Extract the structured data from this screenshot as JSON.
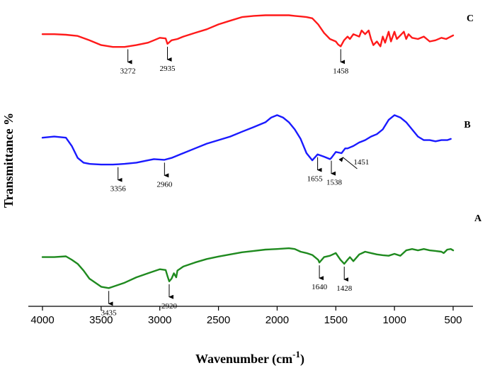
{
  "chart_data": {
    "type": "line",
    "title": "",
    "xlabel": "Wavenumber (cm",
    "xlabel_sup": "-1",
    "xlabel_tail": ")",
    "ylabel": "Transmittance %",
    "xlim": [
      4000,
      500
    ],
    "x_reversed": true,
    "xticks": [
      4000,
      3500,
      3000,
      2500,
      2000,
      1500,
      1000,
      500
    ],
    "yticks": [],
    "grid": false,
    "legend": "none",
    "series": [
      {
        "name": "C",
        "color": "#ff1a1a",
        "x": [
          4000,
          3900,
          3800,
          3700,
          3600,
          3500,
          3400,
          3300,
          3200,
          3100,
          3050,
          3000,
          2950,
          2935,
          2900,
          2850,
          2800,
          2700,
          2600,
          2500,
          2400,
          2300,
          2200,
          2100,
          2000,
          1900,
          1850,
          1800,
          1750,
          1700,
          1650,
          1600,
          1550,
          1500,
          1480,
          1458,
          1430,
          1400,
          1380,
          1350,
          1300,
          1280,
          1250,
          1220,
          1200,
          1180,
          1150,
          1120,
          1100,
          1080,
          1050,
          1030,
          1000,
          980,
          950,
          920,
          900,
          880,
          850,
          800,
          750,
          700,
          650,
          600,
          560,
          520,
          500
        ],
        "y": [
          72,
          72,
          71.5,
          70.5,
          67,
          63,
          61.5,
          61.5,
          63,
          65,
          67,
          69,
          68.5,
          64,
          67,
          68,
          70,
          73,
          76,
          80,
          83,
          86,
          87,
          87.5,
          87.5,
          87.5,
          87,
          86.5,
          86,
          85,
          80,
          73,
          68,
          66,
          63.5,
          62,
          67,
          70,
          68,
          72,
          70,
          75,
          72,
          75,
          68,
          63,
          66,
          62,
          70,
          65,
          74,
          66,
          74,
          68,
          71,
          74,
          68,
          72,
          69,
          68,
          70,
          66,
          67,
          69,
          68,
          70,
          71
        ]
      },
      {
        "name": "B",
        "color": "#1a1aff",
        "x": [
          4000,
          3900,
          3800,
          3750,
          3700,
          3650,
          3600,
          3500,
          3400,
          3356,
          3300,
          3200,
          3100,
          3050,
          2960,
          2900,
          2800,
          2700,
          2600,
          2500,
          2400,
          2300,
          2200,
          2100,
          2050,
          2000,
          1950,
          1900,
          1850,
          1800,
          1750,
          1700,
          1655,
          1600,
          1550,
          1538,
          1500,
          1451,
          1420,
          1400,
          1350,
          1300,
          1250,
          1200,
          1150,
          1100,
          1050,
          1000,
          950,
          900,
          850,
          800,
          750,
          700,
          650,
          600,
          550,
          520
        ],
        "y": [
          46.5,
          47,
          46.5,
          43,
          38,
          36,
          35.5,
          35.2,
          35.2,
          35.3,
          35.5,
          36,
          37,
          37.5,
          37.2,
          38,
          40,
          42,
          44,
          45.5,
          47,
          49,
          51,
          53,
          55,
          56,
          55,
          53,
          50,
          46,
          40,
          37,
          39.5,
          38.5,
          37.5,
          38,
          40.5,
          40,
          42,
          42,
          43,
          44.5,
          45.5,
          47,
          48,
          50,
          54,
          56,
          55,
          53,
          50,
          47,
          45.5,
          45.5,
          45,
          45.5,
          45.5,
          46
        ]
      },
      {
        "name": "A",
        "color": "#1f8a1f",
        "x": [
          4000,
          3900,
          3800,
          3750,
          3700,
          3650,
          3600,
          3500,
          3435,
          3400,
          3300,
          3200,
          3100,
          3000,
          2950,
          2935,
          2920,
          2900,
          2880,
          2860,
          2850,
          2800,
          2700,
          2600,
          2500,
          2400,
          2300,
          2200,
          2100,
          2000,
          1900,
          1850,
          1800,
          1750,
          1700,
          1650,
          1640,
          1600,
          1550,
          1500,
          1460,
          1428,
          1400,
          1380,
          1350,
          1300,
          1250,
          1200,
          1150,
          1100,
          1050,
          1000,
          950,
          900,
          850,
          800,
          750,
          700,
          650,
          600,
          580,
          550,
          520,
          500
        ],
        "y": [
          23,
          23,
          23.3,
          22,
          20.5,
          18,
          15,
          12,
          11.5,
          12,
          13.5,
          15.5,
          17,
          18.5,
          18.2,
          16,
          14,
          15,
          17,
          15.5,
          18,
          19.5,
          21,
          22.3,
          23.2,
          24,
          24.8,
          25.3,
          25.8,
          26,
          26.3,
          26,
          25,
          24.5,
          23.8,
          22,
          21,
          23,
          23.5,
          24.5,
          22,
          20.5,
          22,
          23,
          21.5,
          24,
          25,
          24.5,
          24,
          23.7,
          23.5,
          24.2,
          23.5,
          25.5,
          26,
          25.5,
          26,
          25.5,
          25.3,
          25,
          24.5,
          25.8,
          26,
          25.5
        ]
      }
    ],
    "annotations": [
      {
        "series": "C",
        "x": 3272,
        "label": "3272"
      },
      {
        "series": "C",
        "x": 2935,
        "label": "2935"
      },
      {
        "series": "C",
        "x": 1458,
        "label": "1458"
      },
      {
        "series": "B",
        "x": 3356,
        "label": "3356"
      },
      {
        "series": "B",
        "x": 2960,
        "label": "2960"
      },
      {
        "series": "B",
        "x": 1655,
        "label": "1655"
      },
      {
        "series": "B",
        "x": 1538,
        "label": "1538"
      },
      {
        "series": "B",
        "x": 1451,
        "label": "1451"
      },
      {
        "series": "A",
        "x": 3435,
        "label": "3435"
      },
      {
        "series": "A",
        "x": 2920,
        "label": "2920"
      },
      {
        "series": "A",
        "x": 1640,
        "label": "1640"
      },
      {
        "series": "A",
        "x": 1428,
        "label": "1428"
      }
    ]
  }
}
